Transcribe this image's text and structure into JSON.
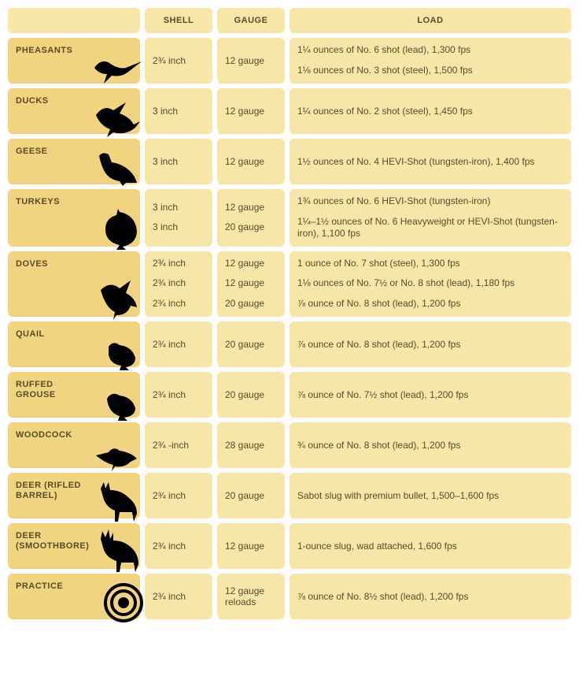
{
  "colors": {
    "light": "#f6e6a8",
    "dark": "#f0d480",
    "text": "#5a4a2a",
    "silhouette": "#000000",
    "background": "#ffffff"
  },
  "headers": {
    "shell": "SHELL",
    "gauge": "GAUGE",
    "load": "LOAD"
  },
  "rows": [
    {
      "label": "PHEASANTS",
      "icon": "pheasant",
      "shell": [
        "2¾ inch"
      ],
      "gauge": [
        "12 gauge"
      ],
      "load": [
        "1¼ ounces of No. 6 shot (lead), 1,300 fps",
        "1⅛ ounces of No. 3 shot (steel), 1,500 fps"
      ]
    },
    {
      "label": "DUCKS",
      "icon": "duck",
      "shell": [
        "3 inch"
      ],
      "gauge": [
        "12 gauge"
      ],
      "load": [
        "1¼ ounces of No. 2 shot (steel), 1,450 fps"
      ]
    },
    {
      "label": "GEESE",
      "icon": "goose",
      "shell": [
        "3 inch"
      ],
      "gauge": [
        "12 gauge"
      ],
      "load": [
        "1½ ounces of No. 4 HEVI-Shot (tungsten-iron), 1,400 fps"
      ]
    },
    {
      "label": "TURKEYS",
      "icon": "turkey",
      "shell": [
        "3 inch",
        "3 inch"
      ],
      "gauge": [
        "12 gauge",
        "20 gauge"
      ],
      "load": [
        "1¾ ounces of No. 6 HEVI-Shot (tungsten-iron)",
        "1¼–1½ ounces of No. 6 Heavyweight or HEVI-Shot (tungsten-iron), 1,100 fps"
      ]
    },
    {
      "label": "DOVES",
      "icon": "dove",
      "shell": [
        "2¾ inch",
        "2¾ inch",
        "2¾ inch"
      ],
      "gauge": [
        "12 gauge",
        "12 gauge",
        "20 gauge"
      ],
      "load": [
        "1 ounce of No. 7 shot (steel), 1,300 fps",
        "1⅛ ounces of No. 7½ or No. 8 shot (lead), 1,180 fps",
        "⅞ ounce of No. 8 shot (lead), 1,200 fps"
      ]
    },
    {
      "label": "QUAIL",
      "icon": "quail",
      "shell": [
        "2¾ inch"
      ],
      "gauge": [
        "20 gauge"
      ],
      "load": [
        "⅞ ounce of No. 8 shot (lead), 1,200 fps"
      ]
    },
    {
      "label": "RUFFED GROUSE",
      "icon": "grouse",
      "shell": [
        "2¾ inch"
      ],
      "gauge": [
        "20 gauge"
      ],
      "load": [
        "⅞ ounce of No. 7½ shot (lead), 1,200 fps"
      ]
    },
    {
      "label": "WOODCOCK",
      "icon": "woodcock",
      "shell": [
        "2¾ -inch"
      ],
      "gauge": [
        "28 gauge"
      ],
      "load": [
        "¾ ounce of No. 8 shot (lead), 1,200 fps"
      ]
    },
    {
      "label": "DEER (RIFLED BARREL)",
      "icon": "deer",
      "shell": [
        "2¾ inch"
      ],
      "gauge": [
        "20 gauge"
      ],
      "load": [
        "Sabot slug with premium bullet, 1,500–1,600 fps"
      ]
    },
    {
      "label": "DEER (SMOOTHBORE)",
      "icon": "deer2",
      "shell": [
        "2¾ inch"
      ],
      "gauge": [
        "12 gauge"
      ],
      "load": [
        "1-ounce slug, wad attached, 1,600 fps"
      ]
    },
    {
      "label": "PRACTICE",
      "icon": "target",
      "shell": [
        "2¾ inch"
      ],
      "gauge": [
        "12 gauge reloads"
      ],
      "load": [
        "⅞ ounce of No. 8½ shot (lead), 1,200 fps"
      ]
    }
  ]
}
